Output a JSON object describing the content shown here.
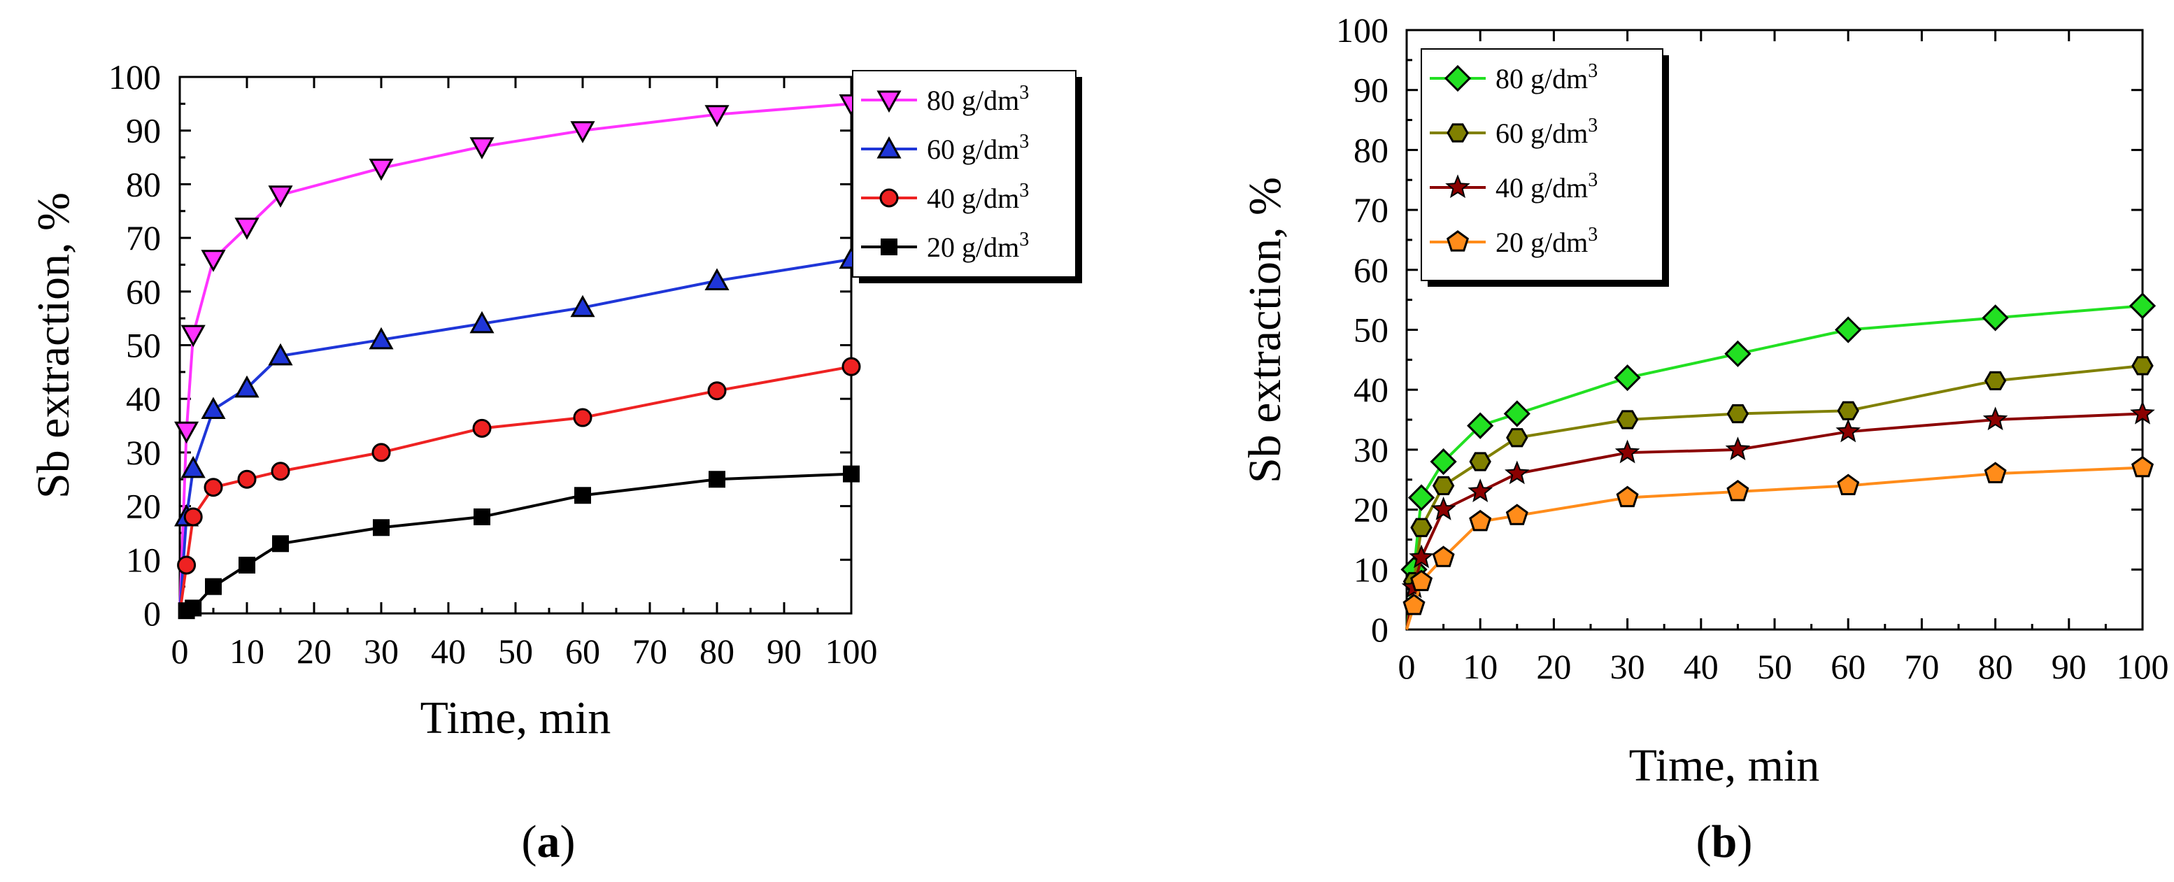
{
  "chart_data": [
    {
      "type": "line",
      "panel": "a",
      "panel_label": "(a)",
      "xlabel": "Time, min",
      "ylabel": "Sb extraction, %",
      "xlim": [
        0,
        100
      ],
      "ylim": [
        0,
        100
      ],
      "xticks": [
        0,
        10,
        20,
        30,
        40,
        50,
        60,
        70,
        80,
        90,
        100
      ],
      "yticks": [
        0,
        10,
        20,
        30,
        40,
        50,
        60,
        70,
        80,
        90,
        100
      ],
      "legend_position": "top-right, outside",
      "series": [
        {
          "name": "80 g/dm",
          "sup": "3",
          "color": "#ff33ff",
          "marker": "triangle-down",
          "x": [
            0,
            1,
            2,
            5,
            10,
            15,
            30,
            45,
            60,
            80,
            100
          ],
          "y": [
            0,
            34,
            52,
            66,
            72,
            78,
            83,
            87,
            90,
            93,
            95
          ]
        },
        {
          "name": "60 g/dm",
          "sup": "3",
          "color": "#1f36d8",
          "marker": "triangle-up",
          "x": [
            0,
            1,
            2,
            5,
            10,
            15,
            30,
            45,
            60,
            80,
            100
          ],
          "y": [
            0,
            18,
            27,
            38,
            42,
            48,
            51,
            54,
            57,
            62,
            66
          ]
        },
        {
          "name": "40 g/dm",
          "sup": "3",
          "color": "#ee2222",
          "marker": "circle",
          "x": [
            0,
            1,
            2,
            5,
            10,
            15,
            30,
            45,
            60,
            80,
            100
          ],
          "y": [
            0,
            9,
            18,
            23.5,
            25,
            26.5,
            30,
            34.5,
            36.5,
            41.5,
            46
          ]
        },
        {
          "name": "20 g/dm",
          "sup": "3",
          "color": "#000000",
          "marker": "square",
          "x": [
            0,
            1,
            2,
            5,
            10,
            15,
            30,
            45,
            60,
            80,
            100
          ],
          "y": [
            0,
            0.5,
            1,
            5,
            9,
            13,
            16,
            18,
            22,
            25,
            26
          ]
        }
      ]
    },
    {
      "type": "line",
      "panel": "b",
      "panel_label": "(b)",
      "xlabel": "Time, min",
      "ylabel": "Sb extraction, %",
      "xlim": [
        0,
        100
      ],
      "ylim": [
        0,
        100
      ],
      "xticks": [
        0,
        10,
        20,
        30,
        40,
        50,
        60,
        70,
        80,
        90,
        100
      ],
      "yticks": [
        0,
        10,
        20,
        30,
        40,
        50,
        60,
        70,
        80,
        90,
        100
      ],
      "legend_position": "top-left, inside",
      "series": [
        {
          "name": "80 g/dm",
          "sup": "3",
          "color": "#22e022",
          "marker": "diamond",
          "x": [
            0,
            1,
            2,
            5,
            10,
            15,
            30,
            45,
            60,
            80,
            100
          ],
          "y": [
            0,
            10,
            22,
            28,
            34,
            36,
            42,
            46,
            50,
            52,
            54
          ]
        },
        {
          "name": "60 g/dm",
          "sup": "3",
          "color": "#808000",
          "marker": "hexagon",
          "x": [
            0,
            1,
            2,
            5,
            10,
            15,
            30,
            45,
            60,
            80,
            100
          ],
          "y": [
            0,
            8,
            17,
            24,
            28,
            32,
            35,
            36,
            36.5,
            41.5,
            44
          ]
        },
        {
          "name": "40 g/dm",
          "sup": "3",
          "color": "#8b0000",
          "marker": "star",
          "x": [
            0,
            1,
            2,
            5,
            10,
            15,
            30,
            45,
            60,
            80,
            100
          ],
          "y": [
            0,
            7,
            12,
            20,
            23,
            26,
            29.5,
            30,
            33,
            35,
            36
          ]
        },
        {
          "name": "20 g/dm",
          "sup": "3",
          "color": "#ff8c1a",
          "marker": "pentagon",
          "x": [
            0,
            1,
            2,
            5,
            10,
            15,
            30,
            45,
            60,
            80,
            100
          ],
          "y": [
            0,
            4,
            8,
            12,
            18,
            19,
            22,
            23,
            24,
            26,
            27
          ]
        }
      ]
    }
  ]
}
